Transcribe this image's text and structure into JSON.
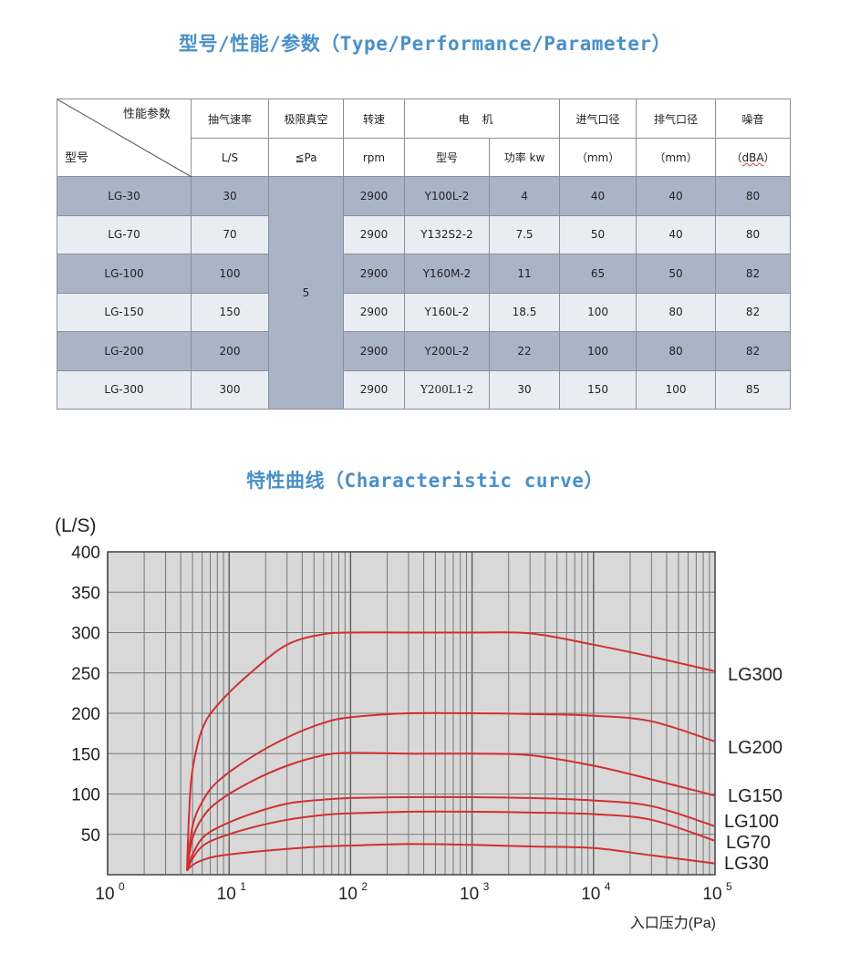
{
  "title_table": "型号/性能/参数（Type/Performance/Parameter）",
  "title_chart": "特性曲线（Characteristic curve）",
  "table": {
    "corner_top": "性能参数",
    "corner_bottom": "型号",
    "h_speed": "抽气速率",
    "h_speed_unit": "L/S",
    "h_vacuum": "极限真空",
    "h_vacuum_unit": "≦Pa",
    "h_rpm": "转速",
    "h_rpm_unit": "rpm",
    "h_motor": "电机",
    "h_motor_model": "型号",
    "h_motor_power": "功率 kw",
    "h_inlet": "进气口径",
    "h_inlet_unit": "（mm）",
    "h_outlet": "排气口径",
    "h_outlet_unit": "（mm）",
    "h_noise": "噪音",
    "h_noise_unit_pre": "（",
    "h_noise_unit": "dBA",
    "h_noise_unit_post": "）",
    "vacuum_value": "5",
    "rows": [
      {
        "model": "LG-30",
        "speed": "30",
        "rpm": "2900",
        "motor": "Y100L-2",
        "power": "4",
        "inlet": "40",
        "outlet": "40",
        "noise": "80"
      },
      {
        "model": "LG-70",
        "speed": "70",
        "rpm": "2900",
        "motor": "Y132S2-2",
        "power": "7.5",
        "inlet": "50",
        "outlet": "40",
        "noise": "80"
      },
      {
        "model": "LG-100",
        "speed": "100",
        "rpm": "2900",
        "motor": "Y160M-2",
        "power": "11",
        "inlet": "65",
        "outlet": "50",
        "noise": "82"
      },
      {
        "model": "LG-150",
        "speed": "150",
        "rpm": "2900",
        "motor": "Y160L-2",
        "power": "18.5",
        "inlet": "100",
        "outlet": "80",
        "noise": "82"
      },
      {
        "model": "LG-200",
        "speed": "200",
        "rpm": "2900",
        "motor": "Y200L-2",
        "power": "22",
        "inlet": "100",
        "outlet": "80",
        "noise": "82"
      },
      {
        "model": "LG-300",
        "speed": "300",
        "rpm": "2900",
        "motor": "Y200L1-2",
        "power": "30",
        "inlet": "150",
        "outlet": "100",
        "noise": "85"
      }
    ]
  },
  "chart_data": {
    "type": "line",
    "title": "",
    "ylabel": "(L/S)",
    "xlabel": "入口压力(Pa)",
    "xscale": "log",
    "xlim": [
      1,
      100000
    ],
    "ylim": [
      0,
      400
    ],
    "yticks": [
      "50",
      "100",
      "150",
      "200",
      "250",
      "300",
      "350",
      "400"
    ],
    "xticks": [
      {
        "base": "10",
        "exp": "0"
      },
      {
        "base": "10",
        "exp": "1"
      },
      {
        "base": "10",
        "exp": "2"
      },
      {
        "base": "10",
        "exp": "3"
      },
      {
        "base": "10",
        "exp": "4"
      },
      {
        "base": "10",
        "exp": "5"
      }
    ],
    "grid": true,
    "background": "#d8d8d8",
    "line_color": "#d03030",
    "series": [
      {
        "name": "LG300",
        "x": [
          4.5,
          4.7,
          5,
          6,
          8,
          15,
          30,
          60,
          100,
          300,
          1000,
          3000,
          10000,
          30000,
          100000
        ],
        "y": [
          5,
          80,
          130,
          180,
          210,
          250,
          285,
          298,
          300,
          300,
          300,
          299,
          285,
          270,
          252
        ]
      },
      {
        "name": "LG200",
        "x": [
          4.5,
          5,
          6,
          8,
          15,
          30,
          60,
          100,
          300,
          1000,
          3000,
          10000,
          30000,
          100000
        ],
        "y": [
          5,
          60,
          90,
          115,
          145,
          170,
          188,
          195,
          200,
          200,
          199,
          197,
          190,
          165
        ]
      },
      {
        "name": "LG150",
        "x": [
          4.5,
          5,
          6,
          8,
          15,
          30,
          60,
          100,
          300,
          1000,
          3000,
          10000,
          30000,
          100000
        ],
        "y": [
          5,
          45,
          70,
          90,
          115,
          135,
          148,
          151,
          150,
          150,
          148,
          135,
          118,
          98
        ]
      },
      {
        "name": "LG100",
        "x": [
          4.5,
          5,
          6,
          8,
          15,
          30,
          60,
          100,
          300,
          1000,
          3000,
          10000,
          30000,
          100000
        ],
        "y": [
          5,
          25,
          45,
          58,
          75,
          88,
          93,
          95,
          96,
          96,
          95,
          92,
          85,
          60
        ]
      },
      {
        "name": "LG70",
        "x": [
          4.5,
          5,
          6,
          8,
          15,
          30,
          60,
          100,
          300,
          1000,
          3000,
          10000,
          30000,
          100000
        ],
        "y": [
          5,
          20,
          35,
          45,
          58,
          68,
          74,
          76,
          78,
          78,
          77,
          75,
          68,
          42
        ]
      },
      {
        "name": "LG30",
        "x": [
          4.5,
          5,
          6,
          8,
          15,
          30,
          60,
          100,
          300,
          1000,
          3000,
          10000,
          30000,
          100000
        ],
        "y": [
          5,
          12,
          18,
          23,
          28,
          32,
          35,
          36,
          38,
          37,
          35,
          33,
          24,
          14
        ]
      }
    ]
  }
}
